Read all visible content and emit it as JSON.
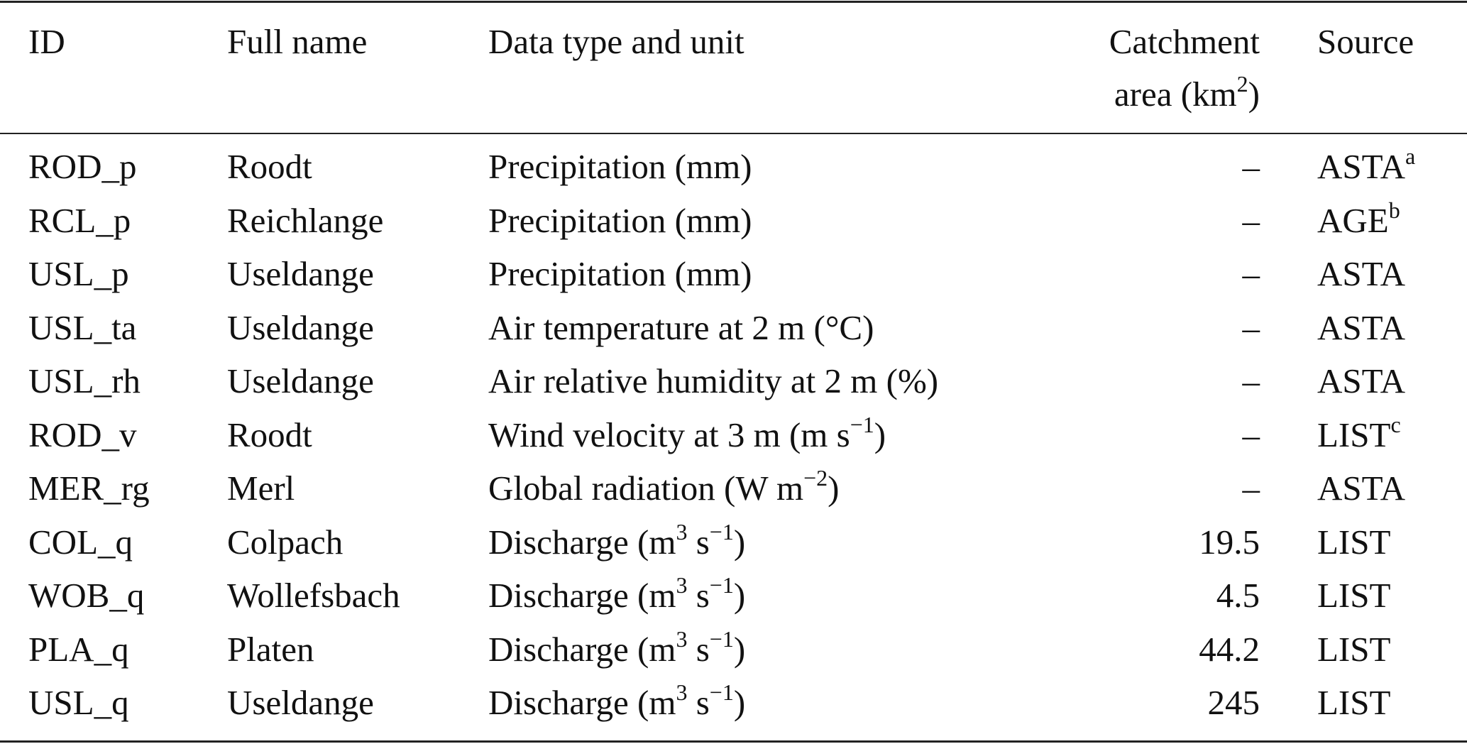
{
  "header": {
    "id": "ID",
    "full_name": "Full name",
    "data_type": "Data type and unit",
    "area_line1": "Catchment",
    "area_line2_pre": "area (km",
    "area_line2_sup": "2",
    "area_line2_post": ")",
    "source": "Source"
  },
  "rows": [
    {
      "id": "ROD_p",
      "name": "Roodt",
      "type": [
        {
          "t": "Precipitation (mm)"
        }
      ],
      "area": "–",
      "source": "ASTA",
      "source_sup": "a"
    },
    {
      "id": "RCL_p",
      "name": "Reichlange",
      "type": [
        {
          "t": "Precipitation (mm)"
        }
      ],
      "area": "–",
      "source": "AGE",
      "source_sup": "b"
    },
    {
      "id": "USL_p",
      "name": "Useldange",
      "type": [
        {
          "t": "Precipitation (mm)"
        }
      ],
      "area": "–",
      "source": "ASTA",
      "source_sup": ""
    },
    {
      "id": "USL_ta",
      "name": "Useldange",
      "type": [
        {
          "t": "Air temperature at 2 m (°C)"
        }
      ],
      "area": "–",
      "source": "ASTA",
      "source_sup": ""
    },
    {
      "id": "USL_rh",
      "name": "Useldange",
      "type": [
        {
          "t": "Air relative humidity at 2 m (%)"
        }
      ],
      "area": "–",
      "source": "ASTA",
      "source_sup": ""
    },
    {
      "id": "ROD_v",
      "name": "Roodt",
      "type": [
        {
          "t": "Wind velocity at 3 m (m s"
        },
        {
          "sup": "−1"
        },
        {
          "t": ")"
        }
      ],
      "area": "–",
      "source": "LIST",
      "source_sup": "c"
    },
    {
      "id": "MER_rg",
      "name": "Merl",
      "type": [
        {
          "t": "Global radiation (W m"
        },
        {
          "sup": "−2"
        },
        {
          "t": ")"
        }
      ],
      "area": "–",
      "source": "ASTA",
      "source_sup": ""
    },
    {
      "id": "COL_q",
      "name": "Colpach",
      "type": [
        {
          "t": "Discharge (m"
        },
        {
          "sup": "3"
        },
        {
          "t": " s"
        },
        {
          "sup": "−1"
        },
        {
          "t": ")"
        }
      ],
      "area": "19.5",
      "source": "LIST",
      "source_sup": ""
    },
    {
      "id": "WOB_q",
      "name": "Wollefsbach",
      "type": [
        {
          "t": "Discharge (m"
        },
        {
          "sup": "3"
        },
        {
          "t": " s"
        },
        {
          "sup": "−1"
        },
        {
          "t": ")"
        }
      ],
      "area": "4.5",
      "source": "LIST",
      "source_sup": ""
    },
    {
      "id": "PLA_q",
      "name": "Platen",
      "type": [
        {
          "t": "Discharge (m"
        },
        {
          "sup": "3"
        },
        {
          "t": " s"
        },
        {
          "sup": "−1"
        },
        {
          "t": ")"
        }
      ],
      "area": "44.2",
      "source": "LIST",
      "source_sup": ""
    },
    {
      "id": "USL_q",
      "name": "Useldange",
      "type": [
        {
          "t": "Discharge (m"
        },
        {
          "sup": "3"
        },
        {
          "t": " s"
        },
        {
          "sup": "−1"
        },
        {
          "t": ")"
        }
      ],
      "area": "245",
      "source": "LIST",
      "source_sup": ""
    }
  ]
}
